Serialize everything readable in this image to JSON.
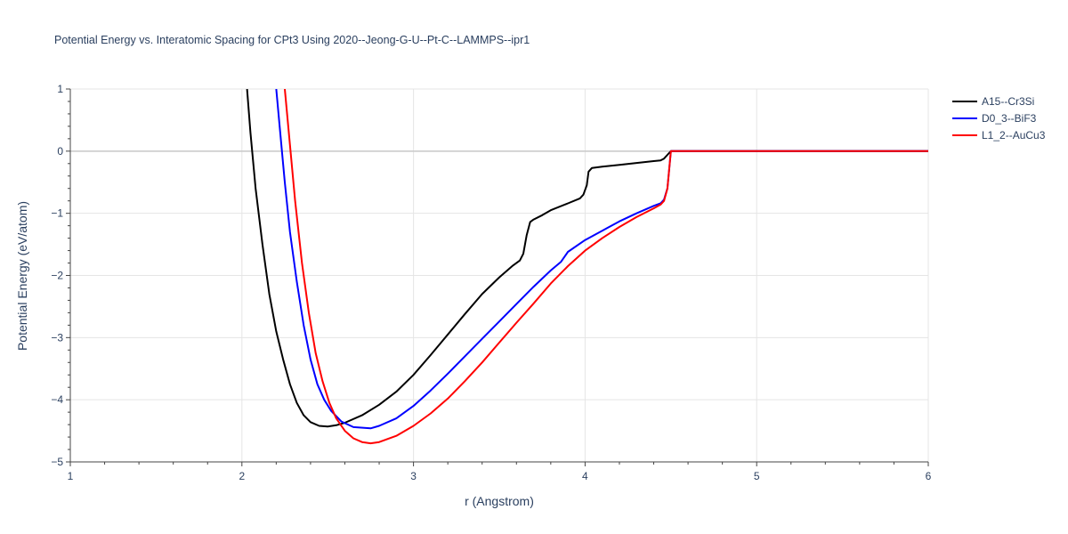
{
  "chart_data": {
    "type": "line",
    "title": "Potential Energy vs. Interatomic Spacing for CPt3 Using 2020--Jeong-G-U--Pt-C--LAMMPS--ipr1",
    "xlabel": "r (Angstrom)",
    "ylabel": "Potential Energy (eV/atom)",
    "xlim": [
      1,
      6
    ],
    "ylim": [
      -5,
      1
    ],
    "x_ticks": [
      1,
      2,
      3,
      4,
      5,
      6
    ],
    "y_ticks": [
      1,
      0,
      -1,
      -2,
      -3,
      -4,
      -5
    ],
    "x_tick_labels": [
      "1",
      "2",
      "3",
      "4",
      "5",
      "6"
    ],
    "y_tick_labels": [
      "1",
      "0",
      "−1",
      "−2",
      "−3",
      "−4",
      "−5"
    ],
    "grid": true,
    "legend_position": "top-right",
    "series": [
      {
        "name": "A15--Cr3Si",
        "color": "#000000",
        "points": [
          [
            2.03,
            1.0
          ],
          [
            2.05,
            0.3
          ],
          [
            2.08,
            -0.6
          ],
          [
            2.12,
            -1.5
          ],
          [
            2.16,
            -2.3
          ],
          [
            2.2,
            -2.9
          ],
          [
            2.24,
            -3.35
          ],
          [
            2.28,
            -3.75
          ],
          [
            2.32,
            -4.05
          ],
          [
            2.36,
            -4.25
          ],
          [
            2.4,
            -4.36
          ],
          [
            2.45,
            -4.42
          ],
          [
            2.5,
            -4.43
          ],
          [
            2.55,
            -4.41
          ],
          [
            2.6,
            -4.37
          ],
          [
            2.7,
            -4.25
          ],
          [
            2.8,
            -4.08
          ],
          [
            2.9,
            -3.87
          ],
          [
            3.0,
            -3.6
          ],
          [
            3.1,
            -3.28
          ],
          [
            3.2,
            -2.95
          ],
          [
            3.3,
            -2.62
          ],
          [
            3.4,
            -2.3
          ],
          [
            3.5,
            -2.03
          ],
          [
            3.58,
            -1.84
          ],
          [
            3.62,
            -1.76
          ],
          [
            3.64,
            -1.65
          ],
          [
            3.66,
            -1.35
          ],
          [
            3.68,
            -1.14
          ],
          [
            3.7,
            -1.1
          ],
          [
            3.75,
            -1.03
          ],
          [
            3.8,
            -0.95
          ],
          [
            3.9,
            -0.84
          ],
          [
            3.97,
            -0.76
          ],
          [
            3.99,
            -0.7
          ],
          [
            4.01,
            -0.55
          ],
          [
            4.02,
            -0.33
          ],
          [
            4.04,
            -0.27
          ],
          [
            4.1,
            -0.25
          ],
          [
            4.2,
            -0.22
          ],
          [
            4.3,
            -0.19
          ],
          [
            4.4,
            -0.16
          ],
          [
            4.44,
            -0.15
          ],
          [
            4.46,
            -0.12
          ],
          [
            4.48,
            -0.06
          ],
          [
            4.5,
            0.0
          ],
          [
            5.0,
            0.0
          ],
          [
            6.0,
            0.0
          ]
        ]
      },
      {
        "name": "D0_3--BiF3",
        "color": "#0000ff",
        "points": [
          [
            2.2,
            1.0
          ],
          [
            2.22,
            0.4
          ],
          [
            2.25,
            -0.5
          ],
          [
            2.28,
            -1.3
          ],
          [
            2.32,
            -2.1
          ],
          [
            2.36,
            -2.8
          ],
          [
            2.4,
            -3.35
          ],
          [
            2.44,
            -3.75
          ],
          [
            2.48,
            -4.0
          ],
          [
            2.52,
            -4.18
          ],
          [
            2.58,
            -4.35
          ],
          [
            2.65,
            -4.44
          ],
          [
            2.75,
            -4.46
          ],
          [
            2.8,
            -4.42
          ],
          [
            2.9,
            -4.3
          ],
          [
            3.0,
            -4.1
          ],
          [
            3.1,
            -3.85
          ],
          [
            3.2,
            -3.58
          ],
          [
            3.3,
            -3.3
          ],
          [
            3.4,
            -3.02
          ],
          [
            3.5,
            -2.74
          ],
          [
            3.6,
            -2.46
          ],
          [
            3.7,
            -2.18
          ],
          [
            3.8,
            -1.92
          ],
          [
            3.86,
            -1.78
          ],
          [
            3.9,
            -1.62
          ],
          [
            4.0,
            -1.43
          ],
          [
            4.1,
            -1.28
          ],
          [
            4.2,
            -1.13
          ],
          [
            4.3,
            -1.0
          ],
          [
            4.4,
            -0.88
          ],
          [
            4.44,
            -0.84
          ],
          [
            4.46,
            -0.78
          ],
          [
            4.48,
            -0.6
          ],
          [
            4.5,
            0.0
          ],
          [
            5.0,
            0.0
          ],
          [
            6.0,
            0.0
          ]
        ]
      },
      {
        "name": "L1_2--AuCu3",
        "color": "#ff0000",
        "points": [
          [
            2.25,
            1.0
          ],
          [
            2.28,
            0.1
          ],
          [
            2.31,
            -0.8
          ],
          [
            2.35,
            -1.8
          ],
          [
            2.39,
            -2.6
          ],
          [
            2.43,
            -3.25
          ],
          [
            2.47,
            -3.7
          ],
          [
            2.51,
            -4.05
          ],
          [
            2.55,
            -4.3
          ],
          [
            2.6,
            -4.5
          ],
          [
            2.65,
            -4.62
          ],
          [
            2.7,
            -4.68
          ],
          [
            2.75,
            -4.7
          ],
          [
            2.8,
            -4.68
          ],
          [
            2.9,
            -4.58
          ],
          [
            3.0,
            -4.42
          ],
          [
            3.1,
            -4.22
          ],
          [
            3.2,
            -3.98
          ],
          [
            3.3,
            -3.7
          ],
          [
            3.4,
            -3.4
          ],
          [
            3.5,
            -3.08
          ],
          [
            3.6,
            -2.76
          ],
          [
            3.7,
            -2.45
          ],
          [
            3.8,
            -2.13
          ],
          [
            3.9,
            -1.85
          ],
          [
            4.0,
            -1.6
          ],
          [
            4.1,
            -1.4
          ],
          [
            4.2,
            -1.22
          ],
          [
            4.3,
            -1.06
          ],
          [
            4.4,
            -0.92
          ],
          [
            4.44,
            -0.86
          ],
          [
            4.46,
            -0.8
          ],
          [
            4.48,
            -0.6
          ],
          [
            4.5,
            0.0
          ],
          [
            5.0,
            0.0
          ],
          [
            6.0,
            0.0
          ]
        ]
      }
    ]
  }
}
